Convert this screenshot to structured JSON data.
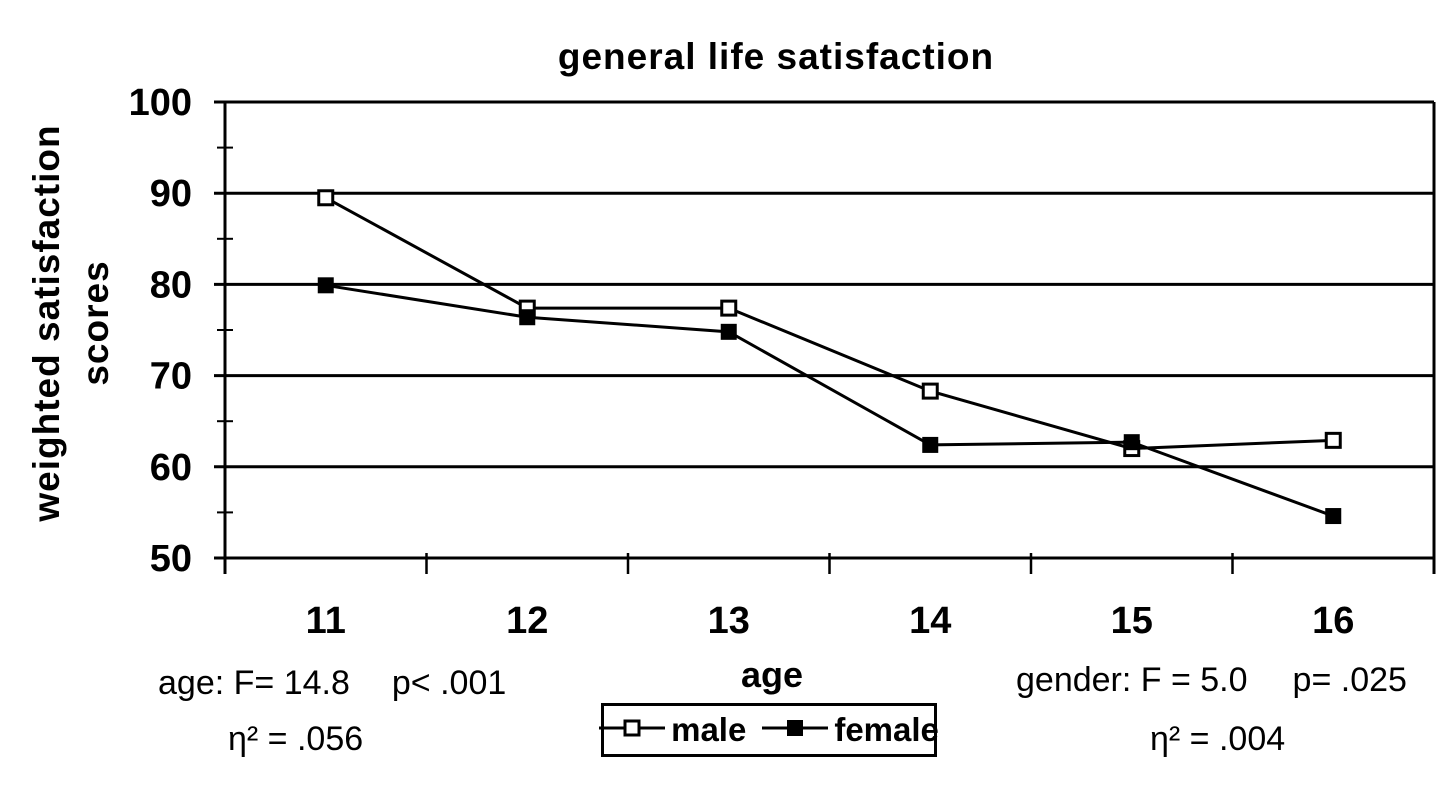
{
  "title": "general life satisfaction",
  "y_axis": {
    "title_line1": "weighted satisfaction",
    "title_line2": "scores",
    "tick_labels": [
      "100",
      "90",
      "80",
      "70",
      "60",
      "50"
    ]
  },
  "x_axis": {
    "title": "age",
    "tick_labels": [
      "11",
      "12",
      "13",
      "14",
      "15",
      "16"
    ]
  },
  "legend": {
    "items": [
      {
        "label": "male",
        "marker": "open-square"
      },
      {
        "label": "female",
        "marker": "filled-square"
      }
    ]
  },
  "annotations": {
    "age": {
      "stat": "age: F= 14.8",
      "p": "p< .001",
      "eta": "η² = .056"
    },
    "gender": {
      "stat": "gender: F = 5.0",
      "p": "p= .025",
      "eta": "η² = .004"
    }
  },
  "colors": {
    "ink": "#000000",
    "background": "#ffffff"
  },
  "chart_data": {
    "type": "line",
    "title": "general life satisfaction",
    "xlabel": "age",
    "ylabel": "weighted satisfaction scores",
    "categories": [
      11,
      12,
      13,
      14,
      15,
      16
    ],
    "series": [
      {
        "name": "male",
        "marker": "open-square",
        "values": [
          89.5,
          77.4,
          77.4,
          68.3,
          62.0,
          62.9
        ]
      },
      {
        "name": "female",
        "marker": "filled-square",
        "values": [
          79.9,
          76.4,
          74.8,
          62.4,
          62.7,
          54.6
        ]
      }
    ],
    "ylim": [
      50,
      100
    ],
    "y_major_step": 10,
    "y_minor_step": 5,
    "grid": "horizontal-major-gridlines",
    "legend_position": "bottom-center",
    "stats": {
      "age": {
        "F": "14.8",
        "p": "< .001",
        "eta_squared": ".056"
      },
      "gender": {
        "F": "5.0",
        "p": "= .025",
        "eta_squared": ".004"
      }
    }
  }
}
